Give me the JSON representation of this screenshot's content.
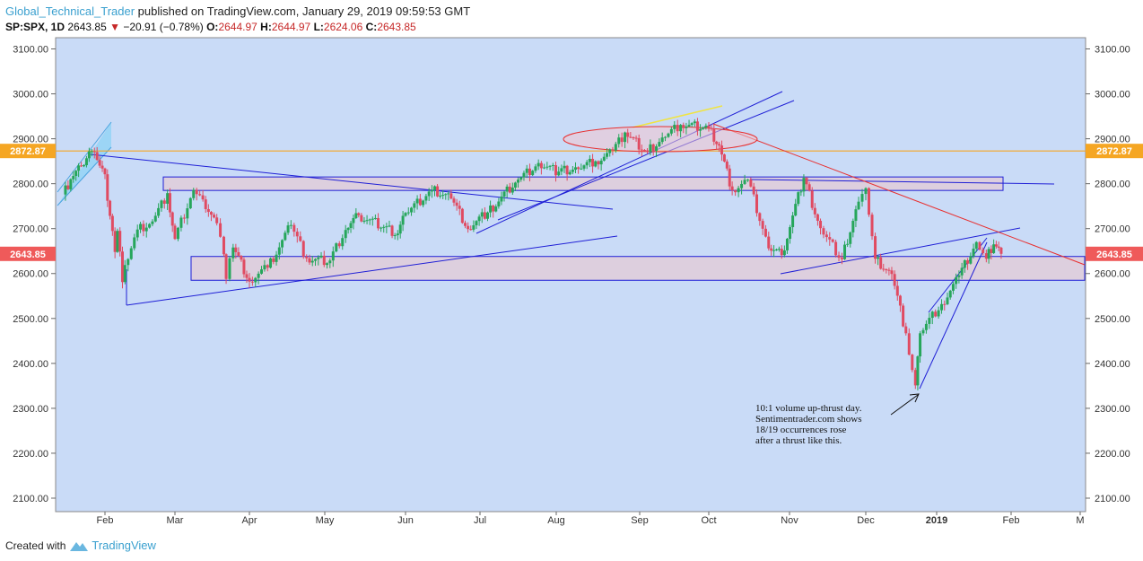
{
  "header": {
    "author": "Global_Technical_Trader",
    "published_text": " published on TradingView.com, January 29, 2019 09:59:53 GMT",
    "symbol": "SP:SPX, 1D",
    "last_price": "2643.85",
    "change_arrow": "▼",
    "change": "−20.91 (−0.78%)",
    "open_label": "O:",
    "open": "2644.97",
    "high_label": "H:",
    "high": "2644.97",
    "low_label": "L:",
    "low": "2624.06",
    "close_label": "C:",
    "close": "2643.85"
  },
  "footer": {
    "created_with": "Created with",
    "brand": "TradingView"
  },
  "chart_data": {
    "type": "candlestick",
    "y_ticks": [
      "3100.00",
      "3000.00",
      "2900.00",
      "2800.00",
      "2700.00",
      "2600.00",
      "2500.00",
      "2400.00",
      "2300.00",
      "2200.00",
      "2100.00"
    ],
    "y_range": [
      2070,
      3125
    ],
    "x_ticks": [
      "Feb",
      "Mar",
      "Apr",
      "May",
      "Jun",
      "Jul",
      "Aug",
      "Sep",
      "Oct",
      "Nov",
      "Dec",
      "2019",
      "Feb",
      "M"
    ],
    "price_labels": [
      {
        "text": "2872.87",
        "value": 2872.87,
        "color": "#f5a623"
      },
      {
        "text": "2643.85",
        "value": 2643.85,
        "color": "#ef5a5a"
      }
    ],
    "annotation": [
      "10:1 volume up-thrust day.",
      "Sentimentrader.com shows",
      "18/19 occurrences rose",
      "after a thrust like this."
    ],
    "colors": {
      "up": "#26a65b",
      "down": "#e04b62",
      "background": "#c9dbf7",
      "trend": "#1f1fd6",
      "resistance": "#e83030",
      "horizontal": "#f5a623"
    },
    "series": [
      {
        "date": "2018-01-16",
        "close": 2776
      },
      {
        "date": "2018-01-19",
        "close": 2810
      },
      {
        "date": "2018-01-23",
        "close": 2839
      },
      {
        "date": "2018-01-26",
        "close": 2872
      },
      {
        "date": "2018-01-29",
        "close": 2853
      },
      {
        "date": "2018-02-01",
        "close": 2821
      },
      {
        "date": "2018-02-02",
        "close": 2762
      },
      {
        "date": "2018-02-05",
        "close": 2648
      },
      {
        "date": "2018-02-06",
        "close": 2695
      },
      {
        "date": "2018-02-08",
        "close": 2581
      },
      {
        "date": "2018-02-09",
        "close": 2619
      },
      {
        "date": "2018-02-14",
        "close": 2698
      },
      {
        "date": "2018-02-20",
        "close": 2716
      },
      {
        "date": "2018-02-26",
        "close": 2779
      },
      {
        "date": "2018-03-01",
        "close": 2677
      },
      {
        "date": "2018-03-09",
        "close": 2786
      },
      {
        "date": "2018-03-13",
        "close": 2765
      },
      {
        "date": "2018-03-19",
        "close": 2712
      },
      {
        "date": "2018-03-22",
        "close": 2643
      },
      {
        "date": "2018-03-23",
        "close": 2588
      },
      {
        "date": "2018-03-26",
        "close": 2658
      },
      {
        "date": "2018-04-02",
        "close": 2582
      },
      {
        "date": "2018-04-09",
        "close": 2613
      },
      {
        "date": "2018-04-18",
        "close": 2708
      },
      {
        "date": "2018-04-24",
        "close": 2634
      },
      {
        "date": "2018-05-03",
        "close": 2629
      },
      {
        "date": "2018-05-09",
        "close": 2697
      },
      {
        "date": "2018-05-14",
        "close": 2730
      },
      {
        "date": "2018-05-29",
        "close": 2689
      },
      {
        "date": "2018-06-01",
        "close": 2735
      },
      {
        "date": "2018-06-12",
        "close": 2786
      },
      {
        "date": "2018-06-20",
        "close": 2767
      },
      {
        "date": "2018-06-27",
        "close": 2699
      },
      {
        "date": "2018-07-05",
        "close": 2736
      },
      {
        "date": "2018-07-17",
        "close": 2809
      },
      {
        "date": "2018-07-25",
        "close": 2846
      },
      {
        "date": "2018-08-02",
        "close": 2827
      },
      {
        "date": "2018-08-10",
        "close": 2833
      },
      {
        "date": "2018-08-17",
        "close": 2850
      },
      {
        "date": "2018-08-24",
        "close": 2874
      },
      {
        "date": "2018-08-29",
        "close": 2914
      },
      {
        "date": "2018-09-07",
        "close": 2871
      },
      {
        "date": "2018-09-14",
        "close": 2904
      },
      {
        "date": "2018-09-20",
        "close": 2931
      },
      {
        "date": "2018-10-01",
        "close": 2924
      },
      {
        "date": "2018-10-05",
        "close": 2885
      },
      {
        "date": "2018-10-10",
        "close": 2785
      },
      {
        "date": "2018-10-16",
        "close": 2809
      },
      {
        "date": "2018-10-24",
        "close": 2656
      },
      {
        "date": "2018-10-29",
        "close": 2641
      },
      {
        "date": "2018-11-07",
        "close": 2813
      },
      {
        "date": "2018-11-14",
        "close": 2701
      },
      {
        "date": "2018-11-23",
        "close": 2632
      },
      {
        "date": "2018-11-30",
        "close": 2760
      },
      {
        "date": "2018-12-03",
        "close": 2790
      },
      {
        "date": "2018-12-07",
        "close": 2633
      },
      {
        "date": "2018-12-14",
        "close": 2599
      },
      {
        "date": "2018-12-20",
        "close": 2467
      },
      {
        "date": "2018-12-24",
        "close": 2351
      },
      {
        "date": "2018-12-26",
        "close": 2467
      },
      {
        "date": "2019-01-04",
        "close": 2532
      },
      {
        "date": "2019-01-11",
        "close": 2596
      },
      {
        "date": "2019-01-18",
        "close": 2670
      },
      {
        "date": "2019-01-22",
        "close": 2633
      },
      {
        "date": "2019-01-25",
        "close": 2665
      },
      {
        "date": "2019-01-28",
        "close": 2643.85
      }
    ]
  }
}
